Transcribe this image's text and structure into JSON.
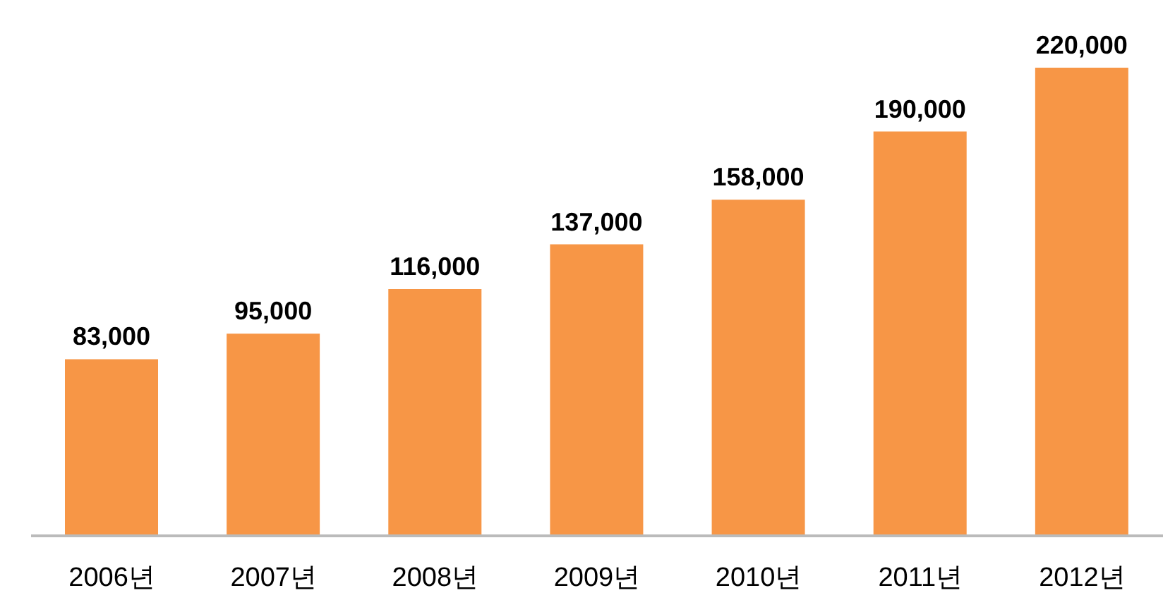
{
  "chart_data": {
    "type": "bar",
    "categories": [
      "2006년",
      "2007년",
      "2008년",
      "2009년",
      "2010년",
      "2011년",
      "2012년"
    ],
    "values": [
      83000,
      95000,
      116000,
      137000,
      158000,
      190000,
      220000
    ],
    "value_labels": [
      "83,000",
      "95,000",
      "116,000",
      "137,000",
      "158,000",
      "190,000",
      "220,000"
    ],
    "color": "#f79646"
  }
}
